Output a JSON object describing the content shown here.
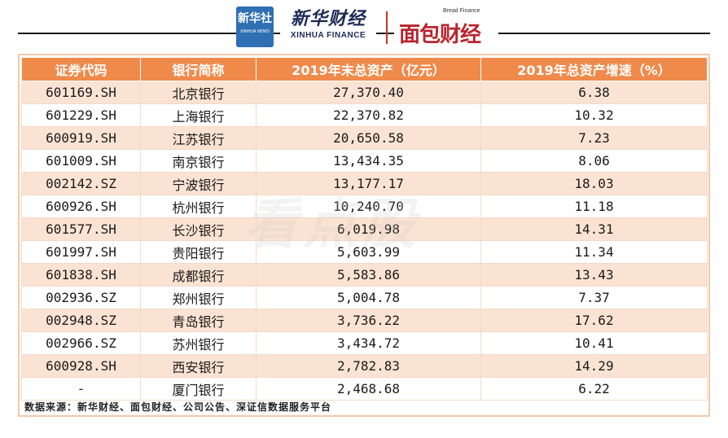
{
  "header": {
    "logo1_cn": "新华社",
    "logo1_en": "XINHUA NEWS",
    "logo2_cn": "新华财经",
    "logo2_en": "XINHUA FINANCE",
    "logo3_en": "Bread Finance",
    "logo3_cn": "面包财经"
  },
  "watermark": "看点股",
  "table": {
    "headers": [
      "证券代码",
      "银行简称",
      "2019年末总资产（亿元）",
      "2019年总资产增速（%）"
    ],
    "rows": [
      {
        "code": "601169.SH",
        "bank": "北京银行",
        "assets": "27,370.40",
        "growth": "6.38"
      },
      {
        "code": "601229.SH",
        "bank": "上海银行",
        "assets": "22,370.82",
        "growth": "10.32"
      },
      {
        "code": "600919.SH",
        "bank": "江苏银行",
        "assets": "20,650.58",
        "growth": "7.23"
      },
      {
        "code": "601009.SH",
        "bank": "南京银行",
        "assets": "13,434.35",
        "growth": "8.06"
      },
      {
        "code": "002142.SZ",
        "bank": "宁波银行",
        "assets": "13,177.17",
        "growth": "18.03"
      },
      {
        "code": "600926.SH",
        "bank": "杭州银行",
        "assets": "10,240.70",
        "growth": "11.18"
      },
      {
        "code": "601577.SH",
        "bank": "长沙银行",
        "assets": "6,019.98",
        "growth": "14.31"
      },
      {
        "code": "601997.SH",
        "bank": "贵阳银行",
        "assets": "5,603.99",
        "growth": "11.34"
      },
      {
        "code": "601838.SH",
        "bank": "成都银行",
        "assets": "5,583.86",
        "growth": "13.43"
      },
      {
        "code": "002936.SZ",
        "bank": "郑州银行",
        "assets": "5,004.78",
        "growth": "7.37"
      },
      {
        "code": "002948.SZ",
        "bank": "青岛银行",
        "assets": "3,736.22",
        "growth": "17.62"
      },
      {
        "code": "002966.SZ",
        "bank": "苏州银行",
        "assets": "3,434.72",
        "growth": "10.41"
      },
      {
        "code": "600928.SH",
        "bank": "西安银行",
        "assets": "2,782.83",
        "growth": "14.29"
      },
      {
        "code": "-",
        "bank": "厦门银行",
        "assets": "2,468.68",
        "growth": "6.22"
      }
    ]
  },
  "source": "数据来源：新华财经、面包财经、公司公告、深证信数据服务平台",
  "colors": {
    "header_bg": "#f08a4b",
    "odd_row_bg": "#fbe3d3",
    "frame": "#f3c9a8"
  }
}
